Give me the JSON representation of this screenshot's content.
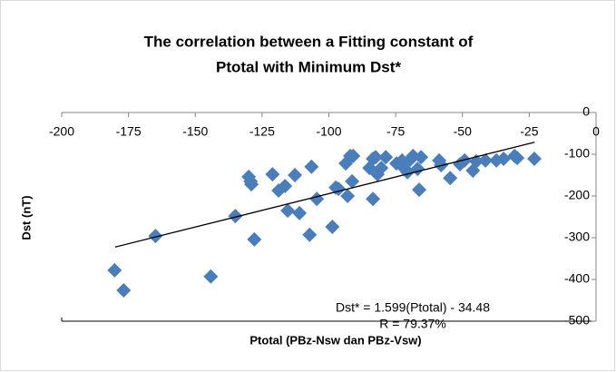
{
  "chart_data": {
    "type": "scatter",
    "title": [
      "The correlation between a Fitting constant of",
      "Ptotal with Minimum Dst*"
    ],
    "x_label": "Ptotal (PBz-Nsw dan PBz-Vsw)",
    "y_label": "Dst (nT)",
    "annotations": [
      "Dst* = 1.599(Ptotal) - 34.48",
      "R = 79.37%"
    ],
    "xlim": [
      -200,
      0
    ],
    "xticks": [
      -200,
      -175,
      -150,
      -125,
      -100,
      -75,
      -50,
      -25,
      0
    ],
    "ylim": [
      -500,
      0
    ],
    "yticks": [
      0,
      -100,
      -200,
      -300,
      -400,
      -500
    ],
    "color": "#4a7ebb",
    "series": [
      {
        "x": [
          -180.2,
          -176.8,
          -164.9,
          -144.2,
          -135,
          -130,
          -129.3,
          -129,
          -127.9,
          -121.1,
          -118.8,
          -116.4,
          -115.4,
          -112.7,
          -111,
          -107.2,
          -106.5,
          -104.5,
          -98.7,
          -97.4,
          -96.4,
          -93.7,
          -93,
          -92,
          -91.3,
          -90.9,
          -84.8,
          -83.5,
          -83.5,
          -82.5,
          -81.8,
          -80.4,
          -78.7,
          -74.7,
          -72.6,
          -71.9,
          -70.6,
          -69.6,
          -68.5,
          -66.8,
          -66.2,
          -65.5,
          -58.7,
          -58,
          -54.6,
          -50.9,
          -49.2,
          -46.1,
          -44.8,
          -41.4,
          -37.3,
          -34.6,
          -30.5,
          -29.5,
          -23.1
        ],
        "values": [
          -378,
          -426,
          -296,
          -393,
          -248,
          -154,
          -165,
          -172,
          -304,
          -148,
          -187,
          -176,
          -235,
          -150,
          -241,
          -293,
          -130,
          -207,
          -274,
          -180,
          -183,
          -122,
          -200,
          -104,
          -165,
          -104,
          -133,
          -207,
          -111,
          -107,
          -148,
          -133,
          -107,
          -122,
          -115,
          -133,
          -143,
          -113,
          -104,
          -135,
          -185,
          -107,
          -115,
          -126,
          -157,
          -124,
          -115,
          -139,
          -117,
          -115,
          -115,
          -111,
          -104,
          -109,
          -111
        ]
      }
    ],
    "trendline": {
      "x": [
        -180,
        -23
      ],
      "values": [
        -322.3,
        -71.3
      ]
    }
  }
}
